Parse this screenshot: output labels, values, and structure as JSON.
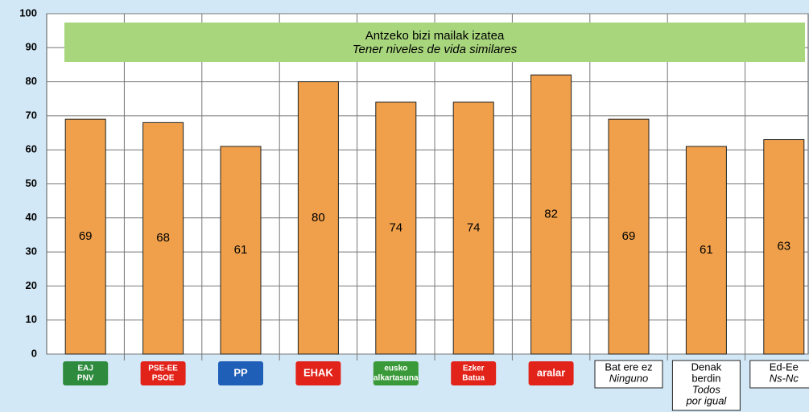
{
  "chart_data": {
    "type": "bar",
    "annotation": [
      "Antzeko bizi mailak izatea",
      "Tener niveles de vida similares"
    ],
    "categories": [
      {
        "logo": [
          "EAJ",
          "PNV"
        ],
        "logo_color": "#2e8b3e"
      },
      {
        "logo": [
          "PSE-EE",
          "PSOE"
        ],
        "logo_color": "#e2231a"
      },
      {
        "logo": [
          "PP"
        ],
        "logo_color": "#1f5fb8"
      },
      {
        "logo": [
          "EHAK"
        ],
        "logo_color": "#e2231a"
      },
      {
        "logo": [
          "eusko",
          "alkartasuna"
        ],
        "logo_color": "#3a9a3a"
      },
      {
        "logo": [
          "Ezker",
          "Batua"
        ],
        "logo_color": "#e2231a"
      },
      {
        "logo": [
          "aralar"
        ],
        "logo_color": "#e2231a"
      },
      {
        "lines": [
          "Bat ere ez"
        ],
        "italic": [
          "Ninguno"
        ]
      },
      {
        "lines": [
          "Denak",
          "berdin"
        ],
        "italic": [
          "Todos",
          "por igual"
        ]
      },
      {
        "lines": [
          "Ed-Ee"
        ],
        "italic": [
          "Ns-Nc"
        ]
      }
    ],
    "values": [
      69,
      68,
      61,
      80,
      74,
      74,
      82,
      69,
      61,
      63
    ],
    "color": "#f0a04b",
    "ylim": [
      0,
      100
    ],
    "yticks": [
      0,
      10,
      20,
      30,
      40,
      50,
      60,
      70,
      80,
      90,
      100
    ],
    "grid": true
  }
}
